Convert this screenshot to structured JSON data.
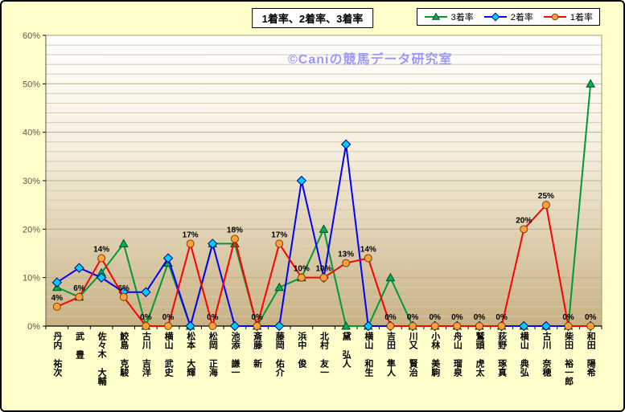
{
  "frame": {
    "background": "#ffffcc",
    "border_color": "#000000"
  },
  "title": "1着率、2着率、3着率",
  "watermark": {
    "text": "©Caniの競馬データ研究室",
    "color": "#9999ff"
  },
  "legend": [
    {
      "key": "rank3",
      "label": "3着率",
      "line_color": "#009933",
      "marker": "triangle",
      "marker_fill": "#00b050",
      "marker_stroke": "#004d26"
    },
    {
      "key": "rank2",
      "label": "2着率",
      "line_color": "#0000ff",
      "marker": "diamond",
      "marker_fill": "#00ccff",
      "marker_stroke": "#000080"
    },
    {
      "key": "rank1",
      "label": "1着率",
      "line_color": "#ff0000",
      "marker": "circle",
      "marker_fill": "#ffa040",
      "marker_stroke": "#7f3f00"
    }
  ],
  "chart_data": {
    "type": "line",
    "title": "1着率、2着率、3着率",
    "categories": [
      "丹内 祐次",
      "武 豊",
      "佐々木 大輔",
      "鮫島 克駿",
      "古川 吉洋",
      "横山 武史",
      "松本 大輝",
      "松岡 正海",
      "池添 謙一",
      "斎藤 新",
      "藤岡 佑介",
      "浜中 俊",
      "北村 友一",
      "黛 弘人",
      "横山 和生",
      "吉田 隼人",
      "川又 賢治",
      "小林 美駒",
      "舟山 瑠泉",
      "鷲頭 虎太",
      "荻野 琢真",
      "横山 典弘",
      "古川 奈穂",
      "柴田 裕一郎",
      "和田 陽希"
    ],
    "series": [
      {
        "key": "rank3",
        "name": "3着率",
        "line_color": "#009933",
        "marker": "triangle",
        "marker_fill": "#00b050",
        "marker_stroke": "#004d26",
        "show_labels": false,
        "values": [
          8,
          6,
          11,
          17,
          0,
          13,
          0,
          17,
          17,
          0,
          8,
          10,
          20,
          0,
          0,
          10,
          0,
          0,
          0,
          0,
          0,
          0,
          0,
          0,
          50
        ]
      },
      {
        "key": "rank2",
        "name": "2着率",
        "line_color": "#0000ff",
        "marker": "diamond",
        "marker_fill": "#00ccff",
        "marker_stroke": "#000080",
        "show_labels": false,
        "values": [
          9,
          12,
          10,
          7,
          7,
          14,
          0,
          17,
          0,
          0,
          0,
          30,
          10,
          37.5,
          0,
          0,
          0,
          0,
          0,
          0,
          0,
          0,
          0,
          0,
          0
        ]
      },
      {
        "key": "rank1",
        "name": "1着率",
        "line_color": "#ff0000",
        "marker": "circle",
        "marker_fill": "#ffa040",
        "marker_stroke": "#7f3f00",
        "show_labels": true,
        "values": [
          4,
          6,
          14,
          6,
          0,
          0,
          17,
          0,
          18,
          0,
          17,
          10,
          10,
          13,
          14,
          0,
          0,
          0,
          0,
          0,
          0,
          20,
          25,
          0,
          0
        ]
      }
    ],
    "ylim": [
      0,
      60
    ],
    "y_major": 10,
    "y_minor": 2,
    "y_ticks": [
      "0%",
      "10%",
      "20%",
      "30%",
      "40%",
      "50%",
      "60%"
    ],
    "grid": true,
    "legend_position": "top-right",
    "plot_bg": {
      "top": "#ffffff",
      "mid": "#f5eedd",
      "bottom": "#c8b183"
    },
    "grid_minor_color": "#d6cab0",
    "grid_major_color": "#bdae8e",
    "axis_color": "#000000"
  }
}
